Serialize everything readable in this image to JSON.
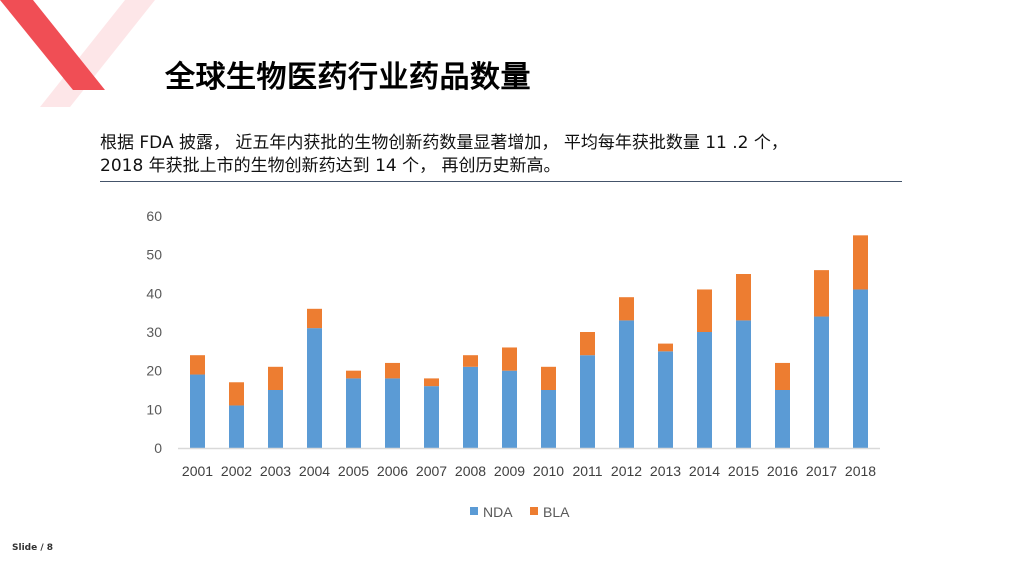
{
  "title": "全球生物医药行业药品数量",
  "description": {
    "line1": "根据 FDA 披露， 近五年内获批的生物创新药数量显著增加， 平均每年获批数量 11 .2 个，",
    "line2": "2018 年获批上市的生物创新药达到 14 个， 再创历史新高。"
  },
  "footer": {
    "slide_label": "Slide / 8"
  },
  "colors": {
    "accent_red": "#f04e55",
    "nda": "#5b9bd5",
    "bla": "#ed7d31",
    "rule": "#44546a"
  },
  "chart_data": {
    "type": "bar",
    "stacked": true,
    "categories": [
      "2001",
      "2002",
      "2003",
      "2004",
      "2005",
      "2006",
      "2007",
      "2008",
      "2009",
      "2010",
      "2011",
      "2012",
      "2013",
      "2014",
      "2015",
      "2016",
      "2017",
      "2018"
    ],
    "series": [
      {
        "name": "NDA",
        "color": "#5b9bd5",
        "values": [
          19,
          11,
          15,
          31,
          18,
          18,
          16,
          21,
          20,
          15,
          24,
          33,
          25,
          30,
          33,
          15,
          34,
          41
        ]
      },
      {
        "name": "BLA",
        "color": "#ed7d31",
        "values": [
          5,
          6,
          6,
          5,
          2,
          4,
          2,
          3,
          6,
          6,
          6,
          6,
          2,
          11,
          12,
          7,
          12,
          14
        ]
      }
    ],
    "ylim": [
      0,
      60
    ],
    "yticks": [
      "0",
      "10",
      "20",
      "30",
      "40",
      "50",
      "60"
    ],
    "grid": false,
    "legend": "bottom",
    "title": "",
    "xlabel": "",
    "ylabel": ""
  }
}
